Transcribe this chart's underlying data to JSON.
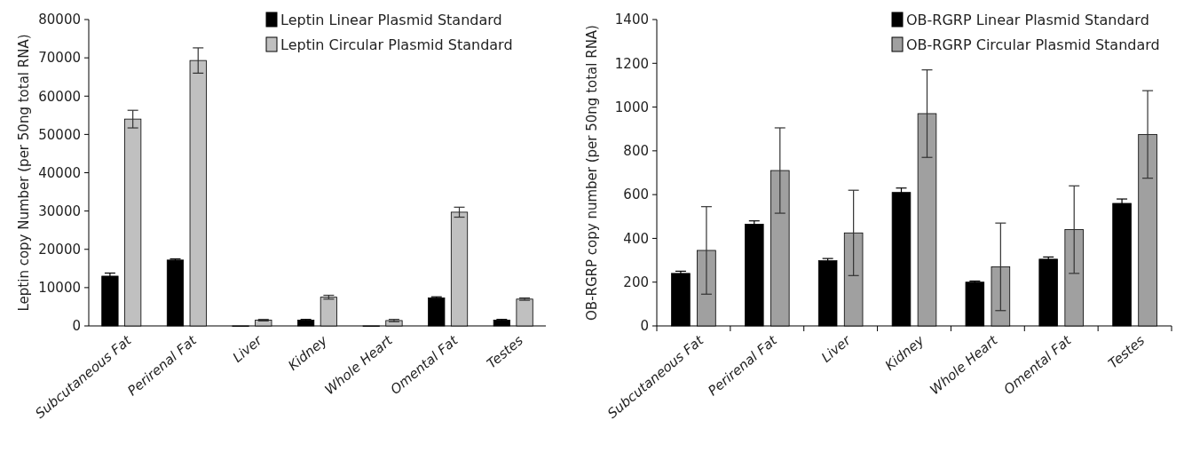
{
  "chart_data": [
    {
      "type": "bar",
      "ylabel": "Leptin copy Number  (per 50ng total RNA)",
      "categories": [
        "Subcutaneous Fat",
        "Perirenal Fat",
        "Liver",
        "Kidney",
        "Whole Heart",
        "Omental Fat",
        "Testes"
      ],
      "ylim": [
        0,
        80000
      ],
      "yticks": [
        0,
        10000,
        20000,
        30000,
        40000,
        50000,
        60000,
        70000,
        80000
      ],
      "legend": "top right",
      "series": [
        {
          "name": "Leptin Linear Plasmid Standard",
          "color": "#000000",
          "values": [
            13000,
            17200,
            0,
            1500,
            0,
            7300,
            1500
          ],
          "errors": [
            800,
            300,
            null,
            200,
            null,
            300,
            200
          ]
        },
        {
          "name": "Leptin Circular Plasmid Standard",
          "color": "#c0c0c0",
          "values": [
            54000,
            69300,
            1500,
            7500,
            1400,
            29700,
            7000
          ],
          "errors": [
            2300,
            3300,
            200,
            500,
            300,
            1300,
            300
          ]
        }
      ]
    },
    {
      "type": "bar",
      "ylabel": "OB-RGRP copy number (per 50ng total RNA)",
      "categories": [
        "Subcutaneous Fat",
        "Perirenal Fat",
        "Liver",
        "Kidney",
        "Whole Heart",
        "Omental Fat",
        "Testes"
      ],
      "ylim": [
        0,
        1400
      ],
      "yticks": [
        0,
        200,
        400,
        600,
        800,
        1000,
        1200,
        1400
      ],
      "legend": "top right",
      "series": [
        {
          "name": "OB-RGRP Linear Plasmid Standard",
          "color": "#000000",
          "values": [
            240,
            465,
            298,
            610,
            200,
            305,
            560
          ],
          "errors": [
            10,
            15,
            10,
            20,
            5,
            10,
            20
          ]
        },
        {
          "name": "OB-RGRP Circular Plasmid Standard",
          "color": "#a0a0a0",
          "values": [
            345,
            710,
            425,
            970,
            270,
            440,
            875
          ],
          "errors": [
            200,
            195,
            195,
            200,
            200,
            200,
            200
          ]
        }
      ]
    }
  ]
}
